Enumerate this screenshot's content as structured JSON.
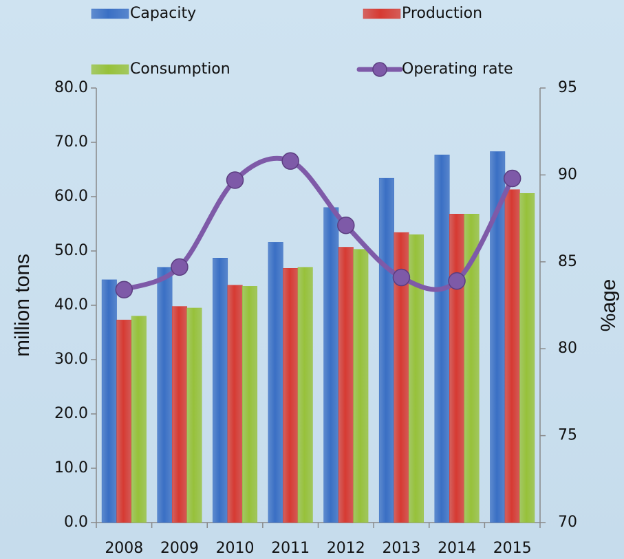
{
  "chart_data": {
    "type": "bar",
    "categories": [
      "2008",
      "2009",
      "2010",
      "2011",
      "2012",
      "2013",
      "2014",
      "2015"
    ],
    "series": [
      {
        "name": "Capacity",
        "color": "#3a6fc4",
        "values": [
          44.7,
          47.0,
          48.7,
          51.6,
          58.0,
          63.4,
          67.7,
          68.3
        ]
      },
      {
        "name": "Production",
        "color": "#d63a32",
        "values": [
          37.3,
          39.8,
          43.7,
          46.8,
          50.7,
          53.4,
          56.8,
          61.3
        ]
      },
      {
        "name": "Consumption",
        "color": "#97c13a",
        "values": [
          38.0,
          39.5,
          43.5,
          47.0,
          50.3,
          53.0,
          56.8,
          60.6
        ]
      },
      {
        "name": "Operating rate",
        "color": "#7e5aa8",
        "type": "line",
        "axis": "y2",
        "values": [
          83.4,
          84.7,
          89.7,
          90.8,
          87.1,
          84.1,
          83.9,
          89.8
        ]
      }
    ],
    "ylabel": "million tons",
    "y2label": "%age",
    "ylim": [
      0,
      80
    ],
    "yticks": [
      {
        "value": 0,
        "label": "0.0"
      },
      {
        "value": 10,
        "label": "10.0"
      },
      {
        "value": 20,
        "label": "20.0"
      },
      {
        "value": 30,
        "label": "30.0"
      },
      {
        "value": 40,
        "label": "40.0"
      },
      {
        "value": 50,
        "label": "50.0"
      },
      {
        "value": 60,
        "label": "60.0"
      },
      {
        "value": 70,
        "label": "70.0"
      },
      {
        "value": 80,
        "label": "80.0"
      }
    ],
    "y2lim": [
      70,
      95
    ],
    "y2ticks": [
      70,
      75,
      80,
      85,
      90,
      95
    ],
    "grid": false,
    "legend": "top"
  }
}
